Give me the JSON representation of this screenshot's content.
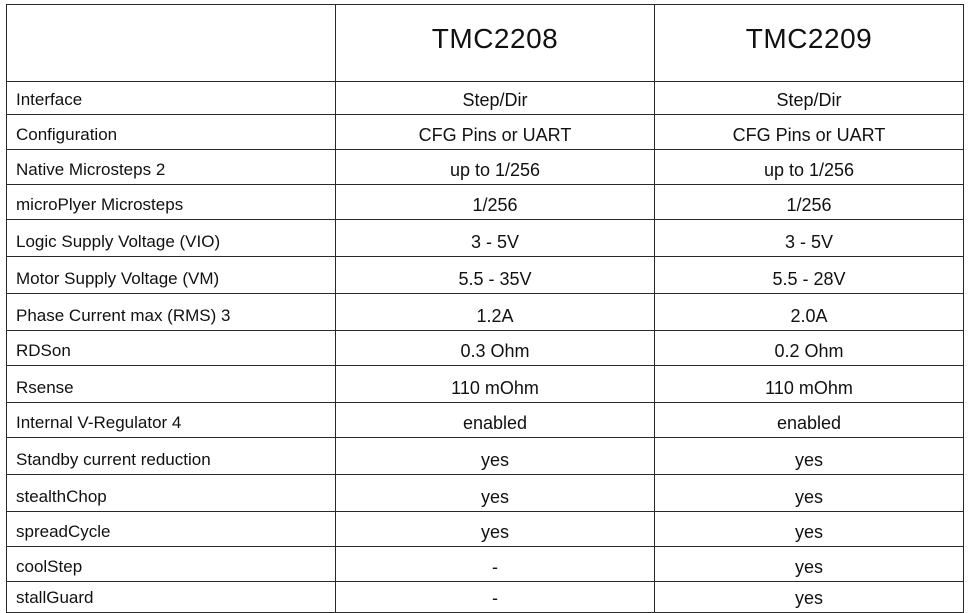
{
  "header": {
    "corner": "",
    "col_a": "TMC2208",
    "col_b": "TMC2209"
  },
  "rows": [
    {
      "label": "Interface",
      "a": "Step/Dir",
      "b": "Step/Dir"
    },
    {
      "label": "Configuration",
      "a": "CFG Pins or UART",
      "b": "CFG Pins or UART"
    },
    {
      "label": "Native Microsteps 2",
      "a": "up to 1/256",
      "b": "up to 1/256"
    },
    {
      "label": "microPlyer Microsteps",
      "a": "1/256",
      "b": "1/256"
    },
    {
      "label": "Logic Supply Voltage (VIO)",
      "a": "3 - 5V",
      "b": "3 - 5V"
    },
    {
      "label": "Motor Supply Voltage (VM)",
      "a": "5.5 - 35V",
      "b": "5.5 - 28V"
    },
    {
      "label": "Phase Current max (RMS) 3",
      "a": "1.2A",
      "b": "2.0A"
    },
    {
      "label": "RDSon",
      "a": "0.3 Ohm",
      "b": "0.2 Ohm"
    },
    {
      "label": "Rsense",
      "a": "110 mOhm",
      "b": "110 mOhm"
    },
    {
      "label": "Internal V-Regulator 4",
      "a": "enabled",
      "b": "enabled"
    },
    {
      "label": "Standby current reduction",
      "a": "yes",
      "b": "yes"
    },
    {
      "label": "stealthChop",
      "a": "yes",
      "b": "yes"
    },
    {
      "label": "spreadCycle",
      "a": "yes",
      "b": "yes"
    },
    {
      "label": "coolStep",
      "a": "-",
      "b": "yes"
    },
    {
      "label": "stallGuard",
      "a": "-",
      "b": "yes"
    }
  ]
}
